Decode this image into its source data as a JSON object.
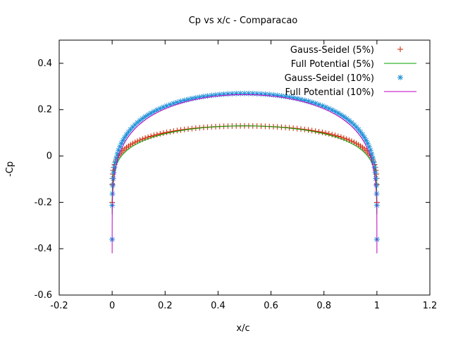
{
  "chart_data": {
    "type": "scatter",
    "title": "Cp vs x/c - Comparacao",
    "xlabel": "x/c",
    "ylabel": "-Cp",
    "xlim": [
      -0.2,
      1.2
    ],
    "ylim": [
      -0.6,
      0.5
    ],
    "xticks": [
      -0.2,
      0,
      0.2,
      0.4,
      0.6,
      0.8,
      1,
      1.2
    ],
    "yticks": [
      -0.6,
      -0.4,
      -0.2,
      0,
      0.2,
      0.4
    ],
    "xtick_labels": [
      "-0.2",
      "0",
      "0.2",
      "0.4",
      "0.6",
      "0.8",
      "1",
      "1.2"
    ],
    "ytick_labels": [
      "-0.6",
      "-0.4",
      "-0.2",
      "0",
      "0.2",
      "0.4"
    ],
    "grid": false,
    "legend_position": "top-right",
    "series": [
      {
        "name": "Gauss-Seidel (5%)",
        "style": "plus",
        "color": "#cc2200",
        "peak": 0.13,
        "edge": -0.2
      },
      {
        "name": "Full Potential (5%)",
        "style": "line",
        "color": "#00a000",
        "peak": 0.13,
        "edge": -0.25
      },
      {
        "name": "Gauss-Seidel (10%)",
        "style": "star",
        "color": "#1e90d8",
        "peak": 0.27,
        "edge": -0.36
      },
      {
        "name": "Full Potential (10%)",
        "style": "line",
        "color": "#c000c0",
        "peak": 0.265,
        "edge": -0.42
      }
    ]
  }
}
